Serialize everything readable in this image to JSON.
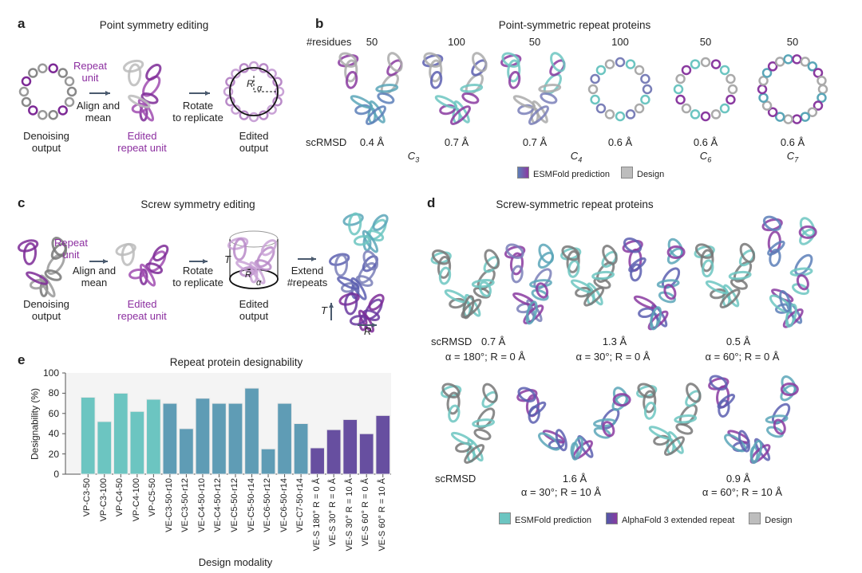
{
  "panel_a": {
    "label": "a",
    "title": "Point symmetry editing",
    "repeat_unit": [
      "Repeat",
      "unit"
    ],
    "align": [
      "Align and",
      "mean"
    ],
    "rotate": [
      "Rotate",
      "to replicate"
    ],
    "denoising": [
      "Denoising",
      "output"
    ],
    "edited_unit": [
      "Edited",
      "repeat unit"
    ],
    "edited_output": [
      "Edited",
      "output"
    ],
    "R": "R",
    "alpha": "α"
  },
  "panel_b": {
    "label": "b",
    "title": "Point-symmetric repeat proteins",
    "residues_label": "#residues",
    "residues": [
      "50",
      "100",
      "50",
      "100",
      "50",
      "50"
    ],
    "scrmsd_label": "scRMSD",
    "scrmsd": [
      "0.4 Å",
      "0.7 Å",
      "0.7 Å",
      "0.6 Å",
      "0.6 Å",
      "0.6 Å"
    ],
    "symmetry": [
      {
        "c": "C",
        "s": "3"
      },
      {
        "c": "C",
        "s": "4"
      },
      {
        "c": "C",
        "s": "6"
      },
      {
        "c": "C",
        "s": "7"
      }
    ],
    "legend": [
      "ESMFold prediction",
      "Design"
    ]
  },
  "panel_c": {
    "label": "c",
    "title": "Screw symmetry editing",
    "repeat_unit": [
      "Repeat",
      "unit"
    ],
    "align": [
      "Align and",
      "mean"
    ],
    "rotate": [
      "Rotate",
      "to replicate"
    ],
    "extend": [
      "Extend",
      "#repeats"
    ],
    "denoising": [
      "Denoising",
      "output"
    ],
    "edited_unit": [
      "Edited",
      "repeat unit"
    ],
    "edited_output": [
      "Edited",
      "output"
    ],
    "T": "T",
    "R": "R",
    "alpha": "α"
  },
  "panel_d": {
    "label": "d",
    "title": "Screw-symmetric repeat proteins",
    "scrmsd_label": "scRMSD",
    "row1": [
      {
        "rmsd": "0.7 Å",
        "params": "α = 180°; R = 0 Å"
      },
      {
        "rmsd": "1.3 Å",
        "params": "α = 30°; R = 0 Å"
      },
      {
        "rmsd": "0.5 Å",
        "params": "α = 60°; R = 0 Å"
      }
    ],
    "row2": [
      {
        "rmsd": "1.6 Å",
        "params": "α = 30°; R = 10 Å"
      },
      {
        "rmsd": "0.9 Å",
        "params": "α = 60°; R = 10 Å"
      }
    ],
    "legend": [
      "ESMFold prediction",
      "AlphaFold 3 extended repeat",
      "Design"
    ]
  },
  "chart_data": {
    "type": "bar",
    "panel_label": "e",
    "title": "Repeat protein designability",
    "xlabel": "Design modality",
    "ylabel": "Designability (%)",
    "ylim": [
      0,
      100
    ],
    "yticks": [
      "0",
      "20",
      "40",
      "60",
      "80",
      "100"
    ],
    "categories": [
      "VP-C3-50",
      "VP-C3-100",
      "VP-C4-50",
      "VP-C4-100",
      "VP-C5-50",
      "VE-C3-50-r10",
      "VE-C3-50-r12",
      "VE-C4-50-r10",
      "VE-C4-50-r12",
      "VE-C5-50-r12",
      "VE-C5-50-r14",
      "VE-C6-50-r12",
      "VE-C6-50-r14",
      "VE-C7-50-r14",
      "VE-S 180° R = 0 Å",
      "VE-S 30° R = 0 Å",
      "VE-S 30° R = 10 Å",
      "VE-S 60° R = 0 Å",
      "VE-S 60° R = 10 Å"
    ],
    "values": [
      76,
      52,
      80,
      62,
      74,
      70,
      45,
      75,
      70,
      70,
      85,
      25,
      70,
      50,
      26,
      44,
      54,
      40,
      58
    ],
    "groups": [
      "VP",
      "VP",
      "VP",
      "VP",
      "VP",
      "VE-C",
      "VE-C",
      "VE-C",
      "VE-C",
      "VE-C",
      "VE-C",
      "VE-C",
      "VE-C",
      "VE-C",
      "VE-S",
      "VE-S",
      "VE-S",
      "VE-S",
      "VE-S"
    ],
    "colors": {
      "VP": "#6cc5c1",
      "VE-C": "#5f9cb5",
      "VE-S": "#674fa0"
    }
  }
}
